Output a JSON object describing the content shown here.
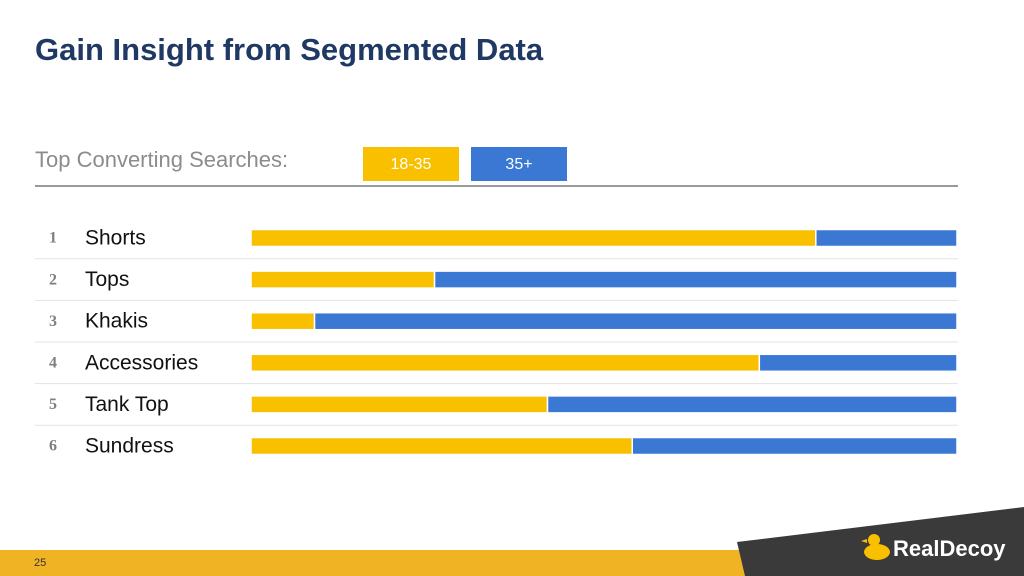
{
  "title": "Gain Insight from Segmented Data",
  "page_number": "25",
  "logo": "RealDecoy",
  "chart_data": {
    "type": "stacked-hbar",
    "subtitle": "Top Converting Searches:",
    "ranks": [
      1,
      2,
      3,
      4,
      5,
      6
    ],
    "categories": [
      "Shorts",
      "Tops",
      "Khakis",
      "Accessories",
      "Tank Top",
      "Sundress"
    ],
    "series": [
      {
        "name": "18-35",
        "color": "#f9c000",
        "values": [
          80,
          26,
          9,
          72,
          42,
          54
        ]
      },
      {
        "name": "35+",
        "color": "#3a78d4",
        "values": [
          20,
          74,
          91,
          28,
          58,
          46
        ]
      }
    ],
    "xlim": [
      0,
      100
    ]
  }
}
